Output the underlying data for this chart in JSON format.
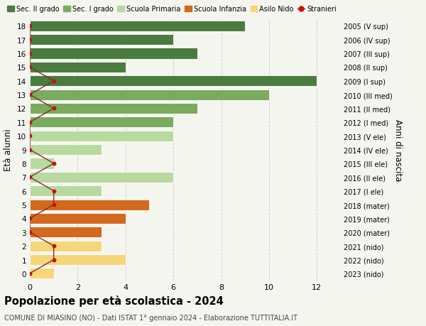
{
  "ages": [
    18,
    17,
    16,
    15,
    14,
    13,
    12,
    11,
    10,
    9,
    8,
    7,
    6,
    5,
    4,
    3,
    2,
    1,
    0
  ],
  "years": [
    "2005 (V sup)",
    "2006 (IV sup)",
    "2007 (III sup)",
    "2008 (II sup)",
    "2009 (I sup)",
    "2010 (III med)",
    "2011 (II med)",
    "2012 (I med)",
    "2013 (V ele)",
    "2014 (IV ele)",
    "2015 (III ele)",
    "2016 (II ele)",
    "2017 (I ele)",
    "2018 (mater)",
    "2019 (mater)",
    "2020 (mater)",
    "2021 (nido)",
    "2022 (nido)",
    "2023 (nido)"
  ],
  "values": [
    9,
    6,
    7,
    4,
    12,
    10,
    7,
    6,
    6,
    3,
    1,
    6,
    3,
    5,
    4,
    3,
    3,
    4,
    1
  ],
  "stranieri": [
    0,
    0,
    0,
    0,
    1,
    0,
    1,
    0,
    0,
    0,
    1,
    0,
    1,
    1,
    0,
    0,
    1,
    1,
    0
  ],
  "categories": {
    "sec2": [
      14,
      15,
      16,
      17,
      18
    ],
    "sec1": [
      11,
      12,
      13
    ],
    "primaria": [
      6,
      7,
      8,
      9,
      10
    ],
    "infanzia": [
      3,
      4,
      5
    ],
    "nido": [
      0,
      1,
      2
    ]
  },
  "colors": {
    "sec2": "#4a7c3f",
    "sec1": "#7aab5e",
    "primaria": "#b8d9a0",
    "infanzia": "#d2691e",
    "nido": "#f5d67a"
  },
  "stranieri_line_color": "#8b2a2a",
  "stranieri_dot_color": "#cc1100",
  "legend_labels": [
    "Sec. II grado",
    "Sec. I grado",
    "Scuola Primaria",
    "Scuola Infanzia",
    "Asilo Nido",
    "Stranieri"
  ],
  "ylabel_left": "Età alunni",
  "ylabel_right": "Anni di nascita",
  "title": "Popolazione per età scolastica - 2024",
  "subtitle": "COMUNE DI MIASINO (NO) - Dati ISTAT 1° gennaio 2024 - Elaborazione TUTTITALIA.IT",
  "xlim": [
    0,
    13
  ],
  "background_color": "#f5f5f0",
  "grid_color": "#cccccc",
  "xticks": [
    0,
    2,
    4,
    6,
    8,
    10,
    12
  ]
}
